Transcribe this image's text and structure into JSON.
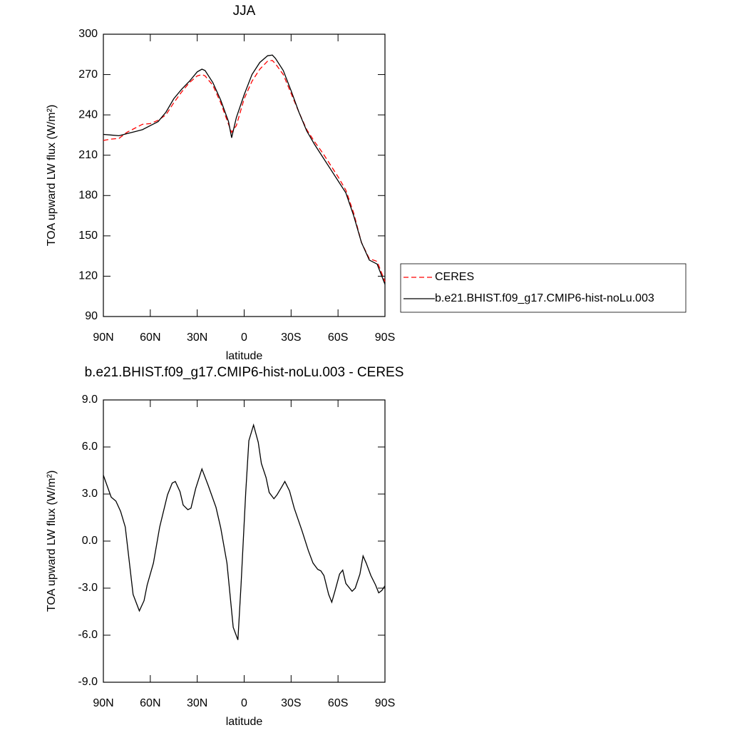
{
  "chart_data": [
    {
      "type": "line",
      "title": "JJA",
      "xlabel": "latitude",
      "ylabel": "TOA upward LW flux (W/m²)",
      "xlim": [
        90,
        -90
      ],
      "xticks": [
        {
          "value": 90,
          "label": "90N"
        },
        {
          "value": 60,
          "label": "60N"
        },
        {
          "value": 30,
          "label": "30N"
        },
        0,
        {
          "value": -30,
          "label": "30S"
        },
        {
          "value": -60,
          "label": "60S"
        },
        {
          "value": -90,
          "label": "90S"
        }
      ],
      "ylim": [
        90,
        300
      ],
      "yticks": [
        90,
        120,
        150,
        180,
        210,
        240,
        270,
        300
      ],
      "legend": "right",
      "x": [
        90,
        85,
        80,
        75,
        70,
        65,
        60,
        55,
        50,
        45,
        40,
        35,
        30,
        27,
        25,
        20,
        15,
        10,
        8,
        5,
        0,
        -5,
        -10,
        -15,
        -18,
        -20,
        -25,
        -30,
        -35,
        -40,
        -45,
        -50,
        -55,
        -60,
        -65,
        -70,
        -75,
        -80,
        -85,
        -90
      ],
      "series": [
        {
          "name": "CERES",
          "color": "#ff0000",
          "dash": true,
          "values": [
            221,
            222,
            222.5,
            227,
            230,
            233,
            233.5,
            236,
            240,
            249,
            257,
            264,
            269,
            270,
            269,
            262,
            249,
            233,
            227,
            232,
            252,
            265,
            274,
            280,
            280.5,
            278,
            270,
            256,
            242,
            229,
            220,
            212,
            203,
            194,
            184,
            167,
            145,
            133,
            131,
            116
          ]
        },
        {
          "name": "b.e21.BHIST.f09_g17.CMIP6-hist-noLu.003",
          "color": "#000000",
          "dash": false,
          "values": [
            225.5,
            225,
            224.5,
            226,
            227.5,
            229,
            232,
            235,
            242,
            252,
            259,
            265,
            272,
            274,
            273,
            264,
            251,
            235,
            223,
            238,
            255,
            270,
            279,
            284,
            284.5,
            282,
            273,
            258,
            242,
            228,
            218,
            209,
            200,
            191,
            182,
            165,
            145,
            132,
            129,
            114
          ]
        }
      ]
    },
    {
      "type": "line",
      "title": "b.e21.BHIST.f09_g17.CMIP6-hist-noLu.003 - CERES",
      "xlabel": "latitude",
      "ylabel": "TOA upward LW flux (W/m²)",
      "xlim": [
        90,
        -90
      ],
      "xticks": [
        {
          "value": 90,
          "label": "90N"
        },
        {
          "value": 60,
          "label": "60N"
        },
        {
          "value": 30,
          "label": "30N"
        },
        0,
        {
          "value": -30,
          "label": "30S"
        },
        {
          "value": -60,
          "label": "60S"
        },
        {
          "value": -90,
          "label": "90S"
        }
      ],
      "ylim": [
        -9,
        9
      ],
      "yticks": [
        {
          "value": -9,
          "label": "-9.0"
        },
        {
          "value": -6,
          "label": "-6.0"
        },
        {
          "value": -3,
          "label": "-3.0"
        },
        {
          "value": 0,
          "label": "0.0"
        },
        {
          "value": 3,
          "label": "3.0"
        },
        {
          "value": 6,
          "label": "6.0"
        },
        {
          "value": 9,
          "label": "9.0"
        }
      ],
      "x": [
        90,
        85,
        82,
        79,
        76,
        71,
        67,
        64,
        62,
        58,
        54,
        49,
        46,
        44,
        41,
        39,
        36,
        34,
        31,
        27,
        23,
        18,
        15,
        11,
        7,
        4,
        2,
        -1,
        -3,
        -6,
        -9,
        -11,
        -14,
        -16,
        -19,
        -21,
        -24,
        -26,
        -29,
        -32,
        -37,
        -41,
        -44,
        -47,
        -49,
        -51,
        -54,
        -56,
        -58,
        -61,
        -63,
        -65,
        -69,
        -71,
        -74,
        -76,
        -78,
        -81,
        -84,
        -86,
        -88,
        -90
      ],
      "series": [
        {
          "name": null,
          "color": "#000000",
          "dash": false,
          "values": [
            4.2,
            2.8,
            2.55,
            1.9,
            0.9,
            -3.4,
            -4.45,
            -3.8,
            -2.8,
            -1.4,
            0.9,
            2.95,
            3.7,
            3.8,
            3.15,
            2.3,
            2.0,
            2.1,
            3.35,
            4.6,
            3.55,
            2.15,
            0.85,
            -1.4,
            -5.5,
            -6.3,
            -2.8,
            3.1,
            6.4,
            7.4,
            6.3,
            4.95,
            4.05,
            3.1,
            2.7,
            2.95,
            3.45,
            3.8,
            3.2,
            2.1,
            0.65,
            -0.6,
            -1.4,
            -1.8,
            -1.9,
            -2.2,
            -3.4,
            -3.9,
            -3.2,
            -2.1,
            -1.85,
            -2.7,
            -3.2,
            -3.0,
            -2.1,
            -0.95,
            -1.4,
            -2.2,
            -2.8,
            -3.3,
            -3.15,
            -2.85
          ]
        }
      ]
    }
  ]
}
